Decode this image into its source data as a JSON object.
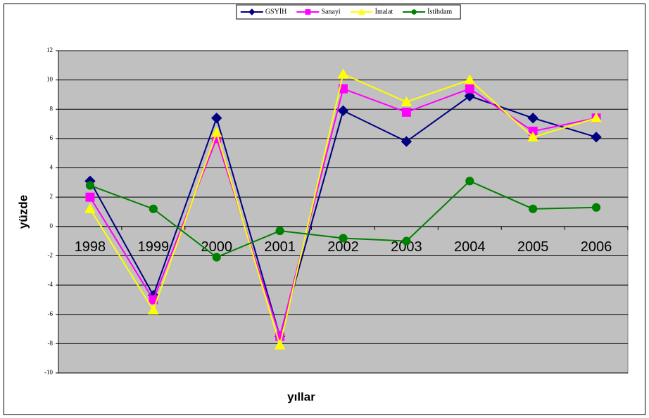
{
  "chart_data": {
    "type": "line",
    "x_label": "yıllar",
    "y_label": "yüzde",
    "categories": [
      "1998",
      "1999",
      "2000",
      "2001",
      "2002",
      "2003",
      "2004",
      "2005",
      "2006"
    ],
    "series": [
      {
        "name": "GSYİH",
        "color": "#000080",
        "marker": "diamond",
        "values": [
          3.1,
          -4.7,
          7.4,
          -7.5,
          7.9,
          5.8,
          8.9,
          7.4,
          6.1
        ]
      },
      {
        "name": "Sanayi",
        "color": "#ff00ff",
        "marker": "square",
        "values": [
          2.0,
          -5.0,
          6.0,
          -7.5,
          9.4,
          7.8,
          9.4,
          6.5,
          7.4
        ]
      },
      {
        "name": "İmalat",
        "color": "#ffff00",
        "marker": "triangle",
        "values": [
          1.2,
          -5.7,
          6.4,
          -8.1,
          10.4,
          8.5,
          10.0,
          6.1,
          7.4
        ]
      },
      {
        "name": "İstihdam",
        "color": "#008000",
        "marker": "circle",
        "values": [
          2.8,
          1.2,
          -2.1,
          -0.3,
          -0.8,
          -1.0,
          3.1,
          1.2,
          1.3
        ]
      }
    ],
    "ylim": [
      -10,
      12
    ],
    "yticks": [
      -10,
      -8,
      -6,
      -4,
      -2,
      0,
      2,
      4,
      6,
      8,
      10,
      12
    ],
    "grid": true,
    "legend": "top"
  }
}
